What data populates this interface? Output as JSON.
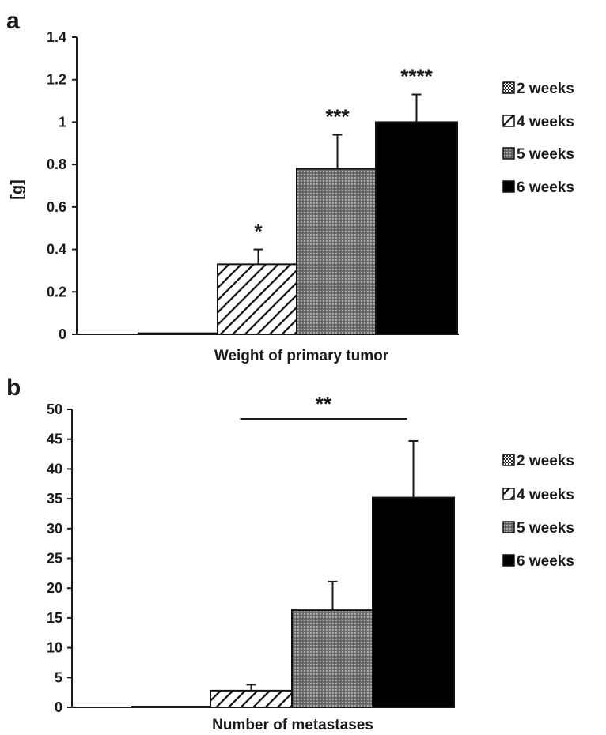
{
  "panels": [
    {
      "letter": "a"
    },
    {
      "letter": "b"
    }
  ],
  "colors": {
    "ink": "#1a1a1a",
    "background": "#ffffff",
    "fill_5_weeks": "#7a7a7a",
    "fill_6_weeks": "#000000"
  },
  "chart_data": [
    {
      "type": "bar",
      "panel": "a",
      "xlabel": "Weight of primary tumor",
      "ylabel": "[g]",
      "ylim": [
        0,
        1.4
      ],
      "yticks": [
        "0",
        "0.2",
        "0.4",
        "0.6",
        "0.8",
        "1",
        "1.2",
        "1.4"
      ],
      "grid": false,
      "legend_position": "right",
      "series": [
        {
          "name": "2 weeks",
          "value": 0.005,
          "error": 0,
          "pattern": "dots",
          "significance": ""
        },
        {
          "name": "4 weeks",
          "value": 0.33,
          "error": 0.07,
          "pattern": "diagonal-hatch",
          "significance": "*"
        },
        {
          "name": "5 weeks",
          "value": 0.78,
          "error": 0.16,
          "pattern": "dense-dots",
          "significance": "***"
        },
        {
          "name": "6 weeks",
          "value": 1.0,
          "error": 0.13,
          "pattern": "solid",
          "significance": "****"
        }
      ]
    },
    {
      "type": "bar",
      "panel": "b",
      "xlabel": "Number of metastases",
      "ylabel": "",
      "ylim": [
        0,
        50
      ],
      "yticks": [
        "0",
        "5",
        "10",
        "15",
        "20",
        "25",
        "30",
        "35",
        "40",
        "45",
        "50"
      ],
      "grid": false,
      "legend_position": "right",
      "series": [
        {
          "name": "2 weeks",
          "value": 0,
          "error": 0,
          "pattern": "dots"
        },
        {
          "name": "4 weeks",
          "value": 2.8,
          "error": 1.0,
          "pattern": "diagonal-hatch"
        },
        {
          "name": "5 weeks",
          "value": 16.3,
          "error": 4.8,
          "pattern": "dense-dots"
        },
        {
          "name": "6 weeks",
          "value": 35.2,
          "error": 9.5,
          "pattern": "solid"
        }
      ],
      "comparison": {
        "from": "4 weeks",
        "to": "6 weeks",
        "label": "**"
      }
    }
  ]
}
